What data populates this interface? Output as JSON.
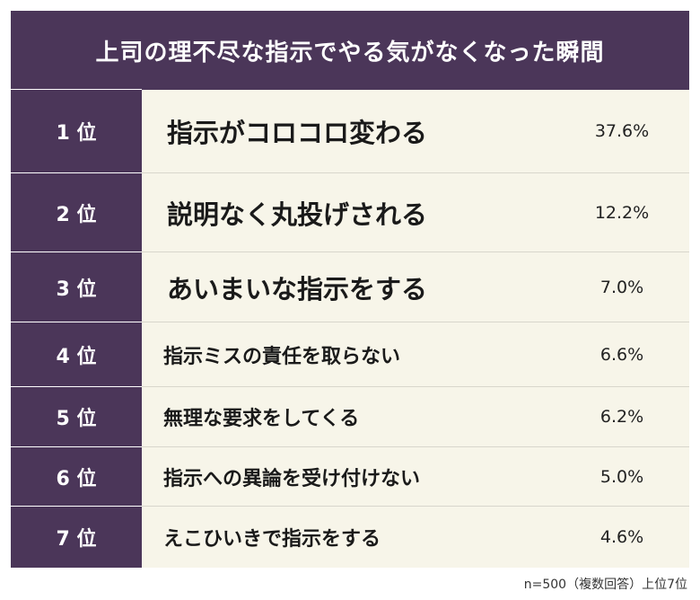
{
  "title": "上司の理不尽な指示でやる気がなくなった瞬間",
  "rows": [
    {
      "rank": "1 位",
      "label": "指示がコロコロ変わる",
      "value": "37.6%"
    },
    {
      "rank": "2 位",
      "label": "説明なく丸投げされる",
      "value": "12.2%"
    },
    {
      "rank": "3 位",
      "label": "あいまいな指示をする",
      "value": "7.0%"
    },
    {
      "rank": "4 位",
      "label": "指示ミスの責任を取らない",
      "value": "6.6%"
    },
    {
      "rank": "5 位",
      "label": "無理な要求をしてくる",
      "value": "6.2%"
    },
    {
      "rank": "6 位",
      "label": "指示への異論を受け付けない",
      "value": "5.0%"
    },
    {
      "rank": "7 位",
      "label": "えこひいきで指示をする",
      "value": "4.6%"
    }
  ],
  "note": "n=500（複数回答）上位7位"
}
